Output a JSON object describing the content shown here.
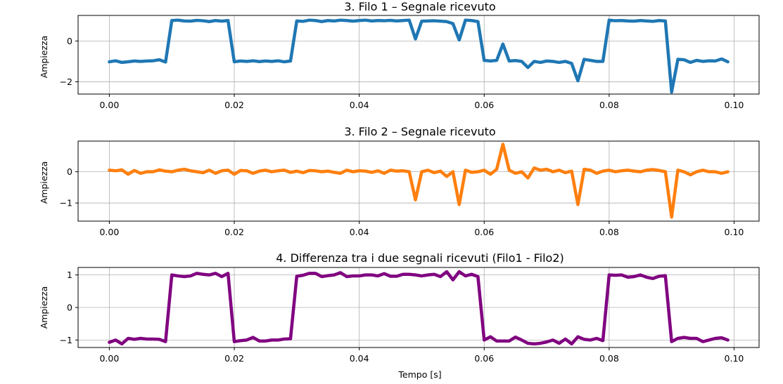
{
  "chart_data": [
    {
      "type": "line",
      "title": "3. Filo 1 – Segnale ricevuto",
      "ylabel": "Ampiezza",
      "xlabel": "",
      "xlim": [
        -0.005,
        0.104
      ],
      "ylim": [
        -2.6,
        1.25
      ],
      "xticks": [
        0.0,
        0.02,
        0.04,
        0.06,
        0.08,
        0.1
      ],
      "xtick_labels": [
        "0.00",
        "0.02",
        "0.04",
        "0.06",
        "0.08",
        "0.10"
      ],
      "yticks": [
        0,
        -2
      ],
      "ytick_labels": [
        "0",
        "−2"
      ],
      "grid": true,
      "series": [
        {
          "color": "#1f77b4",
          "x": [
            0.0,
            0.001,
            0.002,
            0.003,
            0.004,
            0.005,
            0.006,
            0.007,
            0.008,
            0.009,
            0.01,
            0.011,
            0.012,
            0.013,
            0.014,
            0.015,
            0.016,
            0.017,
            0.018,
            0.019,
            0.02,
            0.021,
            0.022,
            0.023,
            0.024,
            0.025,
            0.026,
            0.027,
            0.028,
            0.029,
            0.03,
            0.031,
            0.032,
            0.033,
            0.034,
            0.035,
            0.036,
            0.037,
            0.038,
            0.039,
            0.04,
            0.041,
            0.042,
            0.043,
            0.044,
            0.045,
            0.046,
            0.047,
            0.048,
            0.049,
            0.05,
            0.051,
            0.052,
            0.053,
            0.054,
            0.055,
            0.056,
            0.057,
            0.058,
            0.059,
            0.06,
            0.061,
            0.062,
            0.063,
            0.064,
            0.065,
            0.066,
            0.067,
            0.068,
            0.069,
            0.07,
            0.071,
            0.072,
            0.073,
            0.074,
            0.075,
            0.076,
            0.077,
            0.078,
            0.079,
            0.08,
            0.081,
            0.082,
            0.083,
            0.084,
            0.085,
            0.086,
            0.087,
            0.088,
            0.089,
            0.09,
            0.091,
            0.092,
            0.093,
            0.094,
            0.095,
            0.096,
            0.097,
            0.098,
            0.099
          ],
          "y": [
            -1.02,
            -0.97,
            -1.05,
            -1.02,
            -0.98,
            -1.0,
            -0.98,
            -0.97,
            -0.92,
            -1.03,
            1.0,
            1.02,
            0.98,
            0.97,
            1.01,
            0.99,
            0.95,
            1.0,
            0.97,
            1.0,
            -1.02,
            -0.98,
            -1.0,
            -0.97,
            -1.01,
            -0.98,
            -1.0,
            -0.97,
            -1.02,
            -0.98,
            0.98,
            0.96,
            1.02,
            1.0,
            0.95,
            1.0,
            0.98,
            1.02,
            1.0,
            0.97,
            1.0,
            1.02,
            0.98,
            1.0,
            0.99,
            1.01,
            0.98,
            1.0,
            1.02,
            0.1,
            0.97,
            0.98,
            0.99,
            0.97,
            0.95,
            0.85,
            0.05,
            1.02,
            1.0,
            0.95,
            -0.95,
            -0.98,
            -0.95,
            -0.15,
            -0.98,
            -0.96,
            -1.0,
            -1.3,
            -1.0,
            -1.05,
            -0.98,
            -1.0,
            -1.05,
            -1.0,
            -1.1,
            -1.95,
            -0.9,
            -0.95,
            -1.0,
            -1.0,
            1.02,
            0.99,
            1.0,
            0.98,
            0.97,
            1.0,
            0.98,
            0.96,
            1.0,
            0.98,
            -2.5,
            -0.9,
            -0.92,
            -1.05,
            -0.95,
            -1.0,
            -0.97,
            -0.98,
            -0.88,
            -1.02
          ]
        }
      ]
    },
    {
      "type": "line",
      "title": "3. Filo 2 – Segnale ricevuto",
      "ylabel": "Ampiezza",
      "xlabel": "",
      "xlim": [
        -0.005,
        0.104
      ],
      "ylim": [
        -1.58,
        0.98
      ],
      "xticks": [
        0.0,
        0.02,
        0.04,
        0.06,
        0.08,
        0.1
      ],
      "xtick_labels": [
        "0.00",
        "0.02",
        "0.04",
        "0.06",
        "0.08",
        "0.10"
      ],
      "yticks": [
        0,
        -1
      ],
      "ytick_labels": [
        "0",
        "−1"
      ],
      "grid": true,
      "series": [
        {
          "color": "#ff7f0e",
          "x": [
            0.0,
            0.001,
            0.002,
            0.003,
            0.004,
            0.005,
            0.006,
            0.007,
            0.008,
            0.009,
            0.01,
            0.011,
            0.012,
            0.013,
            0.014,
            0.015,
            0.016,
            0.017,
            0.018,
            0.019,
            0.02,
            0.021,
            0.022,
            0.023,
            0.024,
            0.025,
            0.026,
            0.027,
            0.028,
            0.029,
            0.03,
            0.031,
            0.032,
            0.033,
            0.034,
            0.035,
            0.036,
            0.037,
            0.038,
            0.039,
            0.04,
            0.041,
            0.042,
            0.043,
            0.044,
            0.045,
            0.046,
            0.047,
            0.048,
            0.049,
            0.05,
            0.051,
            0.052,
            0.053,
            0.054,
            0.055,
            0.056,
            0.057,
            0.058,
            0.059,
            0.06,
            0.061,
            0.062,
            0.063,
            0.064,
            0.065,
            0.066,
            0.067,
            0.068,
            0.069,
            0.07,
            0.071,
            0.072,
            0.073,
            0.074,
            0.075,
            0.076,
            0.077,
            0.078,
            0.079,
            0.08,
            0.081,
            0.082,
            0.083,
            0.084,
            0.085,
            0.086,
            0.087,
            0.088,
            0.089,
            0.09,
            0.091,
            0.092,
            0.093,
            0.094,
            0.095,
            0.096,
            0.097,
            0.098,
            0.099
          ],
          "y": [
            0.05,
            0.03,
            0.06,
            -0.08,
            0.04,
            -0.05,
            0.0,
            0.0,
            0.06,
            0.02,
            0.0,
            0.05,
            0.08,
            0.03,
            0.0,
            -0.03,
            0.05,
            -0.05,
            0.03,
            0.05,
            -0.08,
            0.04,
            0.03,
            -0.05,
            0.02,
            0.05,
            0.0,
            0.03,
            0.05,
            -0.02,
            0.02,
            -0.03,
            0.04,
            0.03,
            0.0,
            0.02,
            -0.02,
            -0.05,
            0.05,
            0.0,
            0.03,
            0.02,
            -0.02,
            0.03,
            -0.05,
            0.05,
            0.02,
            0.03,
            0.0,
            -0.9,
            0.0,
            0.05,
            -0.03,
            0.02,
            -0.15,
            0.0,
            -1.05,
            0.05,
            -0.02,
            0.0,
            0.05,
            -0.08,
            0.08,
            0.88,
            0.05,
            -0.05,
            0.0,
            -0.2,
            0.12,
            0.05,
            0.08,
            0.0,
            0.05,
            -0.03,
            0.02,
            -1.05,
            0.08,
            0.05,
            -0.05,
            0.02,
            0.05,
            0.0,
            0.03,
            0.05,
            0.02,
            0.0,
            0.05,
            0.07,
            0.04,
            0.0,
            -1.45,
            0.05,
            0.0,
            -0.1,
            0.0,
            0.05,
            0.0,
            0.0,
            -0.05,
            0.0
          ]
        }
      ]
    },
    {
      "type": "line",
      "title": "4. Differenza tra i due segnali ricevuti (Filo1 - Filo2)",
      "ylabel": "Ampiezza",
      "xlabel": "Tempo [s]",
      "xlim": [
        -0.005,
        0.104
      ],
      "ylim": [
        -1.23,
        1.23
      ],
      "xticks": [
        0.0,
        0.02,
        0.04,
        0.06,
        0.08,
        0.1
      ],
      "xtick_labels": [
        "0.00",
        "0.02",
        "0.04",
        "0.06",
        "0.08",
        "0.10"
      ],
      "yticks": [
        1,
        0,
        -1
      ],
      "ytick_labels": [
        "1",
        "0",
        "−1"
      ],
      "grid": true,
      "series": [
        {
          "color": "#800080",
          "x": [
            0.0,
            0.001,
            0.002,
            0.003,
            0.004,
            0.005,
            0.006,
            0.007,
            0.008,
            0.009,
            0.01,
            0.011,
            0.012,
            0.013,
            0.014,
            0.015,
            0.016,
            0.017,
            0.018,
            0.019,
            0.02,
            0.021,
            0.022,
            0.023,
            0.024,
            0.025,
            0.026,
            0.027,
            0.028,
            0.029,
            0.03,
            0.031,
            0.032,
            0.033,
            0.034,
            0.035,
            0.036,
            0.037,
            0.038,
            0.039,
            0.04,
            0.041,
            0.042,
            0.043,
            0.044,
            0.045,
            0.046,
            0.047,
            0.048,
            0.049,
            0.05,
            0.051,
            0.052,
            0.053,
            0.054,
            0.055,
            0.056,
            0.057,
            0.058,
            0.059,
            0.06,
            0.061,
            0.062,
            0.063,
            0.064,
            0.065,
            0.066,
            0.067,
            0.068,
            0.069,
            0.07,
            0.071,
            0.072,
            0.073,
            0.074,
            0.075,
            0.076,
            0.077,
            0.078,
            0.079,
            0.08,
            0.081,
            0.082,
            0.083,
            0.084,
            0.085,
            0.086,
            0.087,
            0.088,
            0.089,
            0.09,
            0.091,
            0.092,
            0.093,
            0.094,
            0.095,
            0.096,
            0.097,
            0.098,
            0.099
          ],
          "y": [
            -1.07,
            -1.0,
            -1.12,
            -0.95,
            -0.98,
            -0.95,
            -0.97,
            -0.97,
            -0.98,
            -1.05,
            1.0,
            0.97,
            0.95,
            0.97,
            1.05,
            1.02,
            1.0,
            1.05,
            0.95,
            1.05,
            -1.05,
            -1.02,
            -1.0,
            -0.92,
            -1.03,
            -1.03,
            -1.0,
            -1.0,
            -0.97,
            -0.96,
            0.96,
            0.99,
            1.05,
            1.05,
            0.95,
            0.98,
            1.0,
            1.07,
            0.95,
            0.97,
            0.97,
            1.0,
            1.0,
            0.97,
            1.04,
            0.96,
            0.96,
            1.02,
            1.02,
            1.0,
            0.97,
            1.0,
            1.02,
            0.95,
            1.1,
            0.85,
            1.1,
            0.97,
            1.02,
            0.95,
            -1.0,
            -0.9,
            -1.03,
            -1.03,
            -1.03,
            -0.91,
            -1.0,
            -1.1,
            -1.12,
            -1.1,
            -1.06,
            -1.0,
            -1.1,
            -0.97,
            -1.12,
            -0.9,
            -0.98,
            -1.0,
            -0.95,
            -1.02,
            1.0,
            0.99,
            1.0,
            0.93,
            0.95,
            1.0,
            0.93,
            0.89,
            0.96,
            0.98,
            -1.05,
            -0.95,
            -0.92,
            -0.95,
            -0.95,
            -1.05,
            -1.0,
            -0.95,
            -0.93,
            -1.0
          ]
        }
      ]
    }
  ]
}
